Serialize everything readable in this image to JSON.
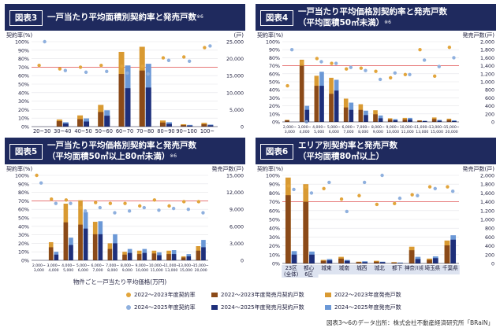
{
  "colors": {
    "header_bg": "#1f2a5e",
    "rate_2022": "#e2a53c",
    "rate_2024": "#8fb0de",
    "units_2022": "#8b4a18",
    "units_2022_rate": "#d99a32",
    "units_2024": "#1e2f7a",
    "units_2024_rate": "#6b98d6",
    "reference_line": "#e45050"
  },
  "legend": {
    "rate_2022": "2022〜2023年度契約率",
    "rate_2024": "2024〜2025年度契約率",
    "units_2022": "2022〜2023年度発売月契約戸数",
    "units_2024": "2024〜2025年度発売月契約戸数",
    "total_2022": "2022〜2023年度発売戸数",
    "total_2024": "2024〜2025年度発売戸数"
  },
  "source": "図表3〜6のデータ出所：株式会社不動産経済研究所「BRaiN」",
  "panels": [
    {
      "badge": "図表3",
      "title_lines": [
        "一戸当たり平均面積別契約率と発売戸数"
      ],
      "note": "※6"
    },
    {
      "badge": "図表4",
      "title_lines": [
        "一戸当たり平均価格別契約率と発売戸数",
        "（平均面積50㎡未満）"
      ],
      "note": "※6"
    },
    {
      "badge": "図表5",
      "title_lines": [
        "一戸当たり平均価格別契約率と発売戸数",
        "（平均面積50㎡以上80㎡未満）"
      ],
      "note": "※6"
    },
    {
      "badge": "図表6",
      "title_lines": [
        "エリア別契約率と発売戸数",
        "（平均面積80㎡以上）"
      ],
      "note": ""
    }
  ],
  "chart_data": [
    {
      "type": "bar",
      "ylabel_left": "契約率(%)",
      "ylabel_right": "(戸)",
      "xlabel": "物件ごと一戸当たり平均面積(㎡)",
      "left_ticks": [
        "100%",
        "90%",
        "80%",
        "70%",
        "60%",
        "50%",
        "40%",
        "30%",
        "20%",
        "10%",
        "0%"
      ],
      "right_ticks": [
        "25,000",
        "20,000",
        "15,000",
        "10,000",
        "5,000",
        "0"
      ],
      "right_max": 25000,
      "reference_rate": 70,
      "categories": [
        "20~30",
        "30~40",
        "40~50",
        "50~60",
        "60~70",
        "70~80",
        "80~90",
        "90~100",
        "100~"
      ],
      "total_2022": [
        0,
        2100,
        3300,
        6400,
        22000,
        23500,
        1800,
        700,
        1100
      ],
      "total_2024": [
        0,
        1300,
        2400,
        4800,
        18000,
        18500,
        1300,
        500,
        600
      ],
      "units_2022": [
        0,
        1600,
        2200,
        4300,
        15500,
        16500,
        1200,
        450,
        700
      ],
      "units_2024": [
        0,
        900,
        1500,
        3200,
        11300,
        11500,
        800,
        300,
        400
      ],
      "rate_2022": [
        72,
        68,
        70,
        72,
        71,
        71,
        81,
        82,
        93
      ],
      "rate_2024": [
        100,
        66,
        64,
        65,
        63,
        62,
        78,
        77,
        95
      ]
    },
    {
      "type": "bar",
      "ylabel_left": "契約率(%)",
      "ylabel_right": "発売戸数(戸)",
      "xlabel": "物件ごと一戸当たり平均価格(万円)",
      "left_ticks": [
        "100%",
        "90%",
        "80%",
        "70%",
        "60%",
        "50%",
        "40%",
        "30%",
        "20%",
        "10%",
        "0%"
      ],
      "right_ticks": [
        "2,000",
        "1,800",
        "1,600",
        "1,400",
        "1,200",
        "1,000",
        "800",
        "600",
        "400",
        "200",
        "0"
      ],
      "right_max": 2000,
      "reference_rate": 70,
      "categories": [
        "2,000~\n3,000",
        "3,000~\n4,000",
        "4,000~\n5,000",
        "5,000~\n6,000",
        "6,000~\n7,000",
        "7,000~\n8,000",
        "8,000~\n9,000",
        "9,000~\n10,000",
        "10,000~\n11,000",
        "11,000~\n13,000",
        "13,000~\n15,000",
        "15,000~\n20,000"
      ],
      "total_2022": [
        50,
        1550,
        1150,
        1100,
        580,
        440,
        290,
        90,
        100,
        40,
        110,
        80
      ],
      "total_2024": [
        0,
        400,
        1250,
        1050,
        480,
        280,
        160,
        70,
        100,
        30,
        50,
        40
      ],
      "units_2022": [
        40,
        1400,
        900,
        700,
        360,
        300,
        190,
        60,
        60,
        30,
        70,
        50
      ],
      "units_2024": [
        0,
        300,
        900,
        780,
        300,
        170,
        90,
        40,
        60,
        20,
        30,
        20
      ],
      "rate_2022": [
        45,
        74,
        79,
        73,
        66,
        67,
        63,
        55,
        59,
        90,
        57,
        93
      ],
      "rate_2024": [
        90,
        0,
        75,
        73,
        68,
        64,
        53,
        61,
        59,
        77,
        69,
        80
      ]
    },
    {
      "type": "bar",
      "ylabel_left": "契約率(%)",
      "ylabel_right": "発売戸数(戸)",
      "xlabel": "物件ごと一戸当たり平均価格(万円)",
      "left_ticks": [
        "100%",
        "90%",
        "80%",
        "70%",
        "60%",
        "50%",
        "40%",
        "30%",
        "20%",
        "10%",
        "0%"
      ],
      "right_ticks": [
        "15,000",
        "12,000",
        "9,000",
        "6,000",
        "3,000",
        "0"
      ],
      "right_max": 15000,
      "reference_rate": 70,
      "categories": [
        "2,000~\n3,000",
        "3,000~\n4,000",
        "4,000~\n5,000",
        "5,000~\n6,000",
        "6,000~\n7,000",
        "7,000~\n8,000",
        "8,000~\n9,000",
        "9,000~\n10,000",
        "10,000~\n11,000",
        "11,000~\n13,000",
        "13,000~\n15,000",
        "15,000~\n20,000"
      ],
      "total_2022": [
        0,
        3200,
        10000,
        10600,
        6800,
        3000,
        1500,
        1700,
        1700,
        1700,
        700,
        2500
      ],
      "total_2024": [
        0,
        1500,
        4000,
        8500,
        6900,
        4600,
        2000,
        2000,
        1400,
        1800,
        1100,
        3600
      ],
      "units_2022": [
        0,
        2300,
        6700,
        6300,
        4600,
        2000,
        1000,
        1100,
        1200,
        1100,
        500,
        1700
      ],
      "units_2024": [
        0,
        1000,
        2700,
        5600,
        4600,
        3000,
        1300,
        1300,
        900,
        1100,
        700,
        2300
      ],
      "rate_2022": [
        100,
        72,
        71,
        62,
        68,
        67,
        67,
        64,
        71,
        64,
        69,
        69
      ],
      "rate_2024": [
        91,
        67,
        67,
        58,
        62,
        56,
        58,
        62,
        59,
        61,
        60,
        56
      ]
    },
    {
      "type": "bar",
      "ylabel_left": "契約率(%)",
      "ylabel_right": "発売戸数(戸)",
      "xlabel": "",
      "left_ticks": [
        "100%",
        "90%",
        "80%",
        "70%",
        "60%",
        "50%",
        "40%",
        "30%",
        "20%",
        "10%",
        "0%"
      ],
      "right_ticks": [
        "2,000",
        "1,800",
        "1,600",
        "1,400",
        "1,200",
        "1,000",
        "800",
        "600",
        "400",
        "200",
        "0"
      ],
      "right_max": 2000,
      "reference_rate": 70,
      "categories": [
        "23区\n(全体)",
        "都心\n6区",
        "城東",
        "城南",
        "城西",
        "城北",
        "都下",
        "神奈川県",
        "埼玉県",
        "千葉県"
      ],
      "total_2022": [
        1950,
        1800,
        80,
        150,
        40,
        60,
        30,
        380,
        110,
        520
      ],
      "total_2024": [
        280,
        270,
        100,
        80,
        50,
        40,
        20,
        150,
        160,
        640
      ],
      "units_2022": [
        1550,
        1400,
        60,
        110,
        30,
        40,
        20,
        300,
        80,
        410
      ],
      "units_2024": [
        200,
        200,
        70,
        60,
        30,
        30,
        10,
        100,
        120,
        540
      ],
      "rate_2022": [
        88,
        87,
        85,
        73,
        77,
        67,
        68,
        78,
        87,
        87
      ],
      "rate_2024": [
        84,
        80,
        92,
        59,
        92,
        100,
        74,
        77,
        85,
        82
      ]
    }
  ]
}
